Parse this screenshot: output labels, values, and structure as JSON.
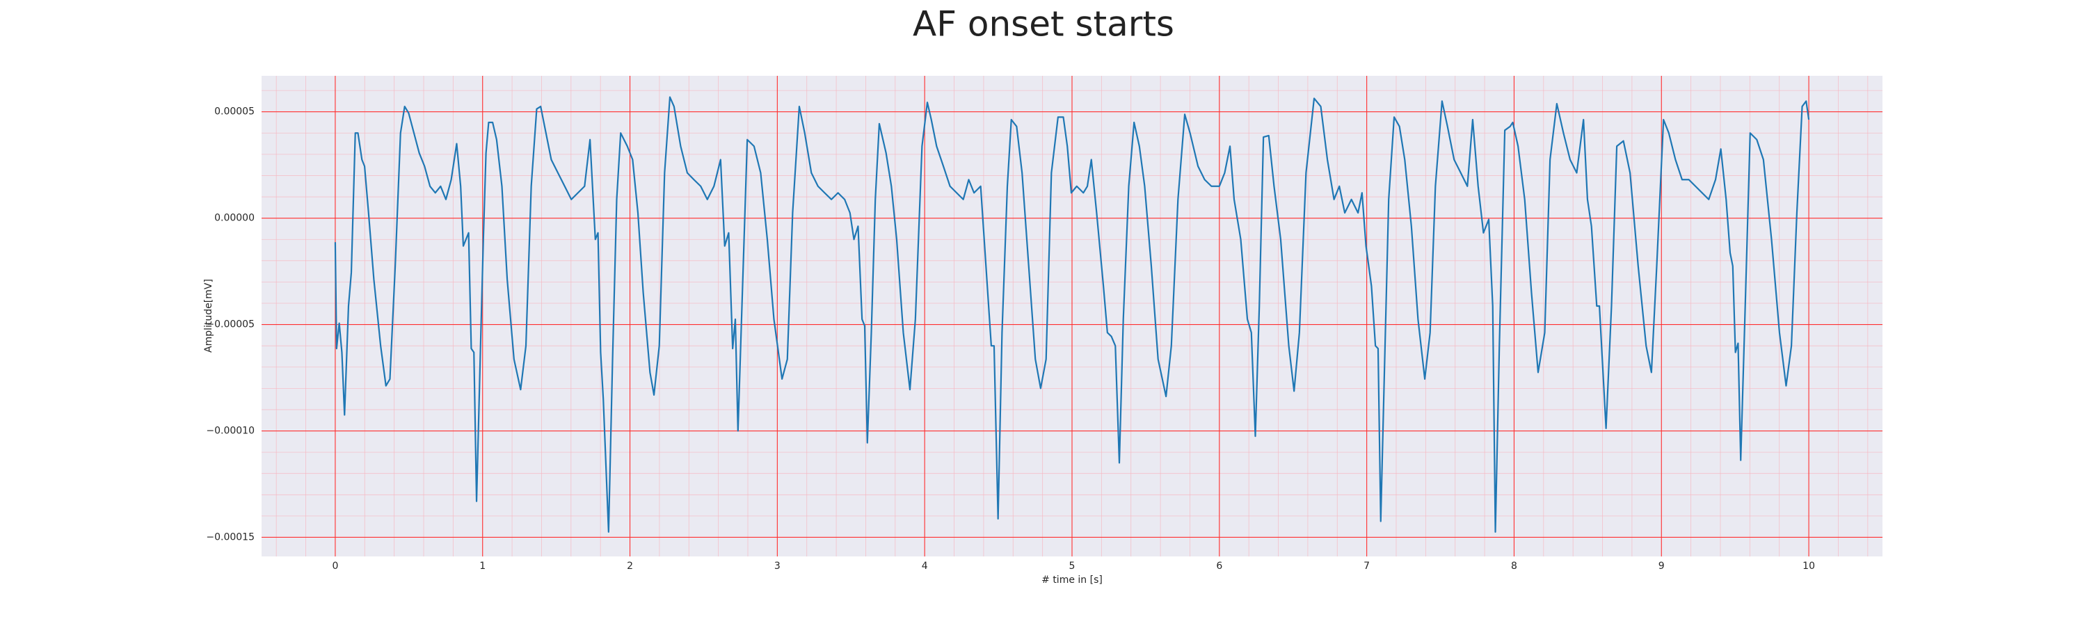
{
  "chart_data": {
    "type": "line",
    "title": "AF onset starts",
    "x_label": "# time in [s]",
    "y_label": "Amplitude[mV]",
    "color": "#1f77b4",
    "grid": true,
    "minor_grid": true,
    "xlim": [
      -0.5,
      10.5
    ],
    "ylim": [
      -0.000159,
      6.69e-05
    ],
    "xticks": [
      0,
      1,
      2,
      3,
      4,
      5,
      6,
      7,
      8,
      9,
      10
    ],
    "yticks": [
      {
        "value": -0.00015,
        "label": "−0.00015"
      },
      {
        "value": -0.0001,
        "label": "−0.00010"
      },
      {
        "value": -5e-05,
        "label": "−0.00005"
      },
      {
        "value": 0,
        "label": "0.00000"
      },
      {
        "value": 5e-05,
        "label": "0.00005"
      }
    ],
    "x": [
      0,
      0.009,
      0.027,
      0.045,
      0.063,
      0.09,
      0.109,
      0.136,
      0.154,
      0.181,
      0.199,
      0.226,
      0.262,
      0.308,
      0.344,
      0.371,
      0.407,
      0.443,
      0.471,
      0.498,
      0.534,
      0.57,
      0.606,
      0.643,
      0.679,
      0.715,
      0.751,
      0.787,
      0.824,
      0.851,
      0.869,
      0.887,
      0.905,
      0.923,
      0.941,
      0.959,
      0.986,
      1.005,
      1.023,
      1.041,
      1.068,
      1.095,
      1.131,
      1.167,
      1.213,
      1.258,
      1.294,
      1.33,
      1.367,
      1.394,
      1.421,
      1.466,
      1.511,
      1.557,
      1.602,
      1.647,
      1.692,
      1.729,
      1.765,
      1.783,
      1.801,
      1.819,
      1.855,
      1.882,
      1.91,
      1.937,
      1.982,
      2.018,
      2.054,
      2.09,
      2.136,
      2.163,
      2.199,
      2.235,
      2.271,
      2.299,
      2.344,
      2.389,
      2.434,
      2.48,
      2.525,
      2.57,
      2.615,
      2.643,
      2.67,
      2.697,
      2.715,
      2.733,
      2.76,
      2.796,
      2.842,
      2.887,
      2.932,
      2.977,
      3.032,
      3.068,
      3.104,
      3.149,
      3.186,
      3.231,
      3.276,
      3.321,
      3.367,
      3.412,
      3.457,
      3.493,
      3.52,
      3.548,
      3.575,
      3.593,
      3.611,
      3.638,
      3.665,
      3.692,
      3.738,
      3.774,
      3.81,
      3.855,
      3.9,
      3.937,
      3.982,
      4.018,
      4.045,
      4.081,
      4.127,
      4.172,
      4.217,
      4.262,
      4.299,
      4.335,
      4.38,
      4.425,
      4.452,
      4.471,
      4.498,
      4.525,
      4.561,
      4.588,
      4.624,
      4.661,
      4.706,
      4.751,
      4.787,
      4.824,
      4.86,
      4.905,
      4.941,
      4.968,
      4.995,
      5.032,
      5.077,
      5.104,
      5.131,
      5.167,
      5.213,
      5.24,
      5.267,
      5.294,
      5.321,
      5.348,
      5.385,
      5.421,
      5.457,
      5.493,
      5.538,
      5.584,
      5.638,
      5.674,
      5.719,
      5.765,
      5.801,
      5.855,
      5.9,
      5.946,
      6,
      6.036,
      6.072,
      6.1,
      6.145,
      6.19,
      6.217,
      6.244,
      6.271,
      6.299,
      6.335,
      6.371,
      6.416,
      6.471,
      6.507,
      6.543,
      6.588,
      6.643,
      6.688,
      6.733,
      6.778,
      6.814,
      6.851,
      6.896,
      6.941,
      6.968,
      6.995,
      7.032,
      7.059,
      7.077,
      7.095,
      7.122,
      7.149,
      7.186,
      7.222,
      7.258,
      7.303,
      7.348,
      7.394,
      7.43,
      7.466,
      7.511,
      7.548,
      7.593,
      7.638,
      7.683,
      7.719,
      7.756,
      7.792,
      7.828,
      7.855,
      7.873,
      7.9,
      7.937,
      7.973,
      7.991,
      8.027,
      8.072,
      8.118,
      8.163,
      8.208,
      8.244,
      8.29,
      8.335,
      8.38,
      8.425,
      8.471,
      8.498,
      8.525,
      8.561,
      8.579,
      8.624,
      8.661,
      8.697,
      8.742,
      8.787,
      8.842,
      8.896,
      8.932,
      8.968,
      9.014,
      9.05,
      9.095,
      9.14,
      9.186,
      9.231,
      9.276,
      9.321,
      9.367,
      9.403,
      9.439,
      9.466,
      9.484,
      9.502,
      9.52,
      9.538,
      9.566,
      9.602,
      9.647,
      9.692,
      9.747,
      9.801,
      9.846,
      9.882,
      9.919,
      9.955,
      9.982,
      10
    ],
    "values": [
      -1.13e-05,
      -6.13e-05,
      -4.94e-05,
      -6.31e-05,
      -9.25e-05,
      -4.13e-05,
      -2.56e-05,
      4e-05,
      4e-05,
      2.75e-05,
      2.44e-05,
      2.5e-06,
      -2.88e-05,
      -6e-05,
      -7.88e-05,
      -7.56e-05,
      -2.25e-05,
      4e-05,
      5.25e-05,
      4.94e-05,
      4e-05,
      3.06e-05,
      2.44e-05,
      1.5e-05,
      1.19e-05,
      1.5e-05,
      8.8e-06,
      1.81e-05,
      3.5e-05,
      1.5e-05,
      -1.31e-05,
      -1e-05,
      -6.9e-06,
      -6.13e-05,
      -6.31e-05,
      -0.0001331,
      -6e-05,
      -1e-05,
      3.06e-05,
      4.5e-05,
      4.5e-05,
      3.69e-05,
      1.5e-05,
      -2.88e-05,
      -6.63e-05,
      -8.06e-05,
      -6e-05,
      1.5e-05,
      5.13e-05,
      5.25e-05,
      4.31e-05,
      2.75e-05,
      2.13e-05,
      1.5e-05,
      8.8e-06,
      1.19e-05,
      1.5e-05,
      3.69e-05,
      -1e-05,
      -6.9e-06,
      -6.31e-05,
      -8.5e-05,
      -0.0001475,
      -6.63e-05,
      8.8e-06,
      4e-05,
      3.38e-05,
      2.75e-05,
      2.5e-06,
      -3.5e-05,
      -7.25e-05,
      -8.31e-05,
      -6e-05,
      2.13e-05,
      5.69e-05,
      5.25e-05,
      3.38e-05,
      2.13e-05,
      1.81e-05,
      1.5e-05,
      8.8e-06,
      1.5e-05,
      2.75e-05,
      -1.31e-05,
      -6.9e-06,
      -6.13e-05,
      -4.75e-05,
      -0.0001,
      -4.13e-05,
      3.69e-05,
      3.38e-05,
      2.13e-05,
      -1e-05,
      -4.75e-05,
      -7.56e-05,
      -6.63e-05,
      2.5e-06,
      5.25e-05,
      4e-05,
      2.13e-05,
      1.5e-05,
      1.19e-05,
      8.8e-06,
      1.19e-05,
      8.8e-06,
      2.5e-06,
      -1e-05,
      -3.8e-06,
      -4.75e-05,
      -5.06e-05,
      -0.0001056,
      -5.38e-05,
      8.8e-06,
      4.44e-05,
      3.06e-05,
      1.5e-05,
      -1e-05,
      -5.38e-05,
      -8.06e-05,
      -4.75e-05,
      3.38e-05,
      5.44e-05,
      4.63e-05,
      3.38e-05,
      2.44e-05,
      1.5e-05,
      1.19e-05,
      8.8e-06,
      1.81e-05,
      1.19e-05,
      1.5e-05,
      -3.19e-05,
      -6e-05,
      -6e-05,
      -0.0001413,
      -5.38e-05,
      1.5e-05,
      4.63e-05,
      4.31e-05,
      2.13e-05,
      -2.25e-05,
      -6.63e-05,
      -8e-05,
      -6.63e-05,
      2.13e-05,
      4.75e-05,
      4.75e-05,
      3.38e-05,
      1.19e-05,
      1.5e-05,
      1.19e-05,
      1.5e-05,
      2.75e-05,
      2.5e-06,
      -3.19e-05,
      -5.38e-05,
      -5.56e-05,
      -6e-05,
      -0.000115,
      -4.75e-05,
      1.5e-05,
      4.5e-05,
      3.38e-05,
      1.5e-05,
      -2.25e-05,
      -6.63e-05,
      -8.38e-05,
      -6e-05,
      8.8e-06,
      4.88e-05,
      4e-05,
      2.44e-05,
      1.81e-05,
      1.5e-05,
      1.5e-05,
      2.13e-05,
      3.38e-05,
      8.8e-06,
      -1e-05,
      -4.75e-05,
      -5.38e-05,
      -0.0001025,
      -4.13e-05,
      3.81e-05,
      3.88e-05,
      1.5e-05,
      -1e-05,
      -6e-05,
      -8.13e-05,
      -5.38e-05,
      2.13e-05,
      5.63e-05,
      5.25e-05,
      2.75e-05,
      8.8e-06,
      1.5e-05,
      2.5e-06,
      8.8e-06,
      2.5e-06,
      1.19e-05,
      -1.31e-05,
      -3.19e-05,
      -6e-05,
      -6.13e-05,
      -0.0001425,
      -6.63e-05,
      8.8e-06,
      4.75e-05,
      4.31e-05,
      2.75e-05,
      -3.8e-06,
      -4.75e-05,
      -7.56e-05,
      -5.38e-05,
      1.5e-05,
      5.5e-05,
      4.31e-05,
      2.75e-05,
      2.13e-05,
      1.5e-05,
      4.63e-05,
      1.5e-05,
      -6.9e-06,
      -6e-07,
      -4.13e-05,
      -0.0001475,
      -6e-05,
      4.13e-05,
      4.31e-05,
      4.5e-05,
      3.38e-05,
      8.8e-06,
      -3.5e-05,
      -7.25e-05,
      -5.38e-05,
      2.75e-05,
      5.38e-05,
      4e-05,
      2.75e-05,
      2.13e-05,
      4.63e-05,
      8.8e-06,
      -3.8e-06,
      -4.13e-05,
      -4.13e-05,
      -9.88e-05,
      -4.13e-05,
      3.38e-05,
      3.63e-05,
      2.13e-05,
      -2.25e-05,
      -6e-05,
      -7.25e-05,
      -2.25e-05,
      4.63e-05,
      4e-05,
      2.75e-05,
      1.81e-05,
      1.81e-05,
      1.5e-05,
      1.19e-05,
      8.8e-06,
      1.81e-05,
      3.25e-05,
      8.8e-06,
      -1.63e-05,
      -2.25e-05,
      -6.31e-05,
      -5.88e-05,
      -0.0001138,
      -4.75e-05,
      4e-05,
      3.69e-05,
      2.75e-05,
      -1e-05,
      -5.38e-05,
      -7.88e-05,
      -6e-05,
      2.5e-06,
      5.25e-05,
      5.5e-05,
      4.63e-05
    ]
  }
}
